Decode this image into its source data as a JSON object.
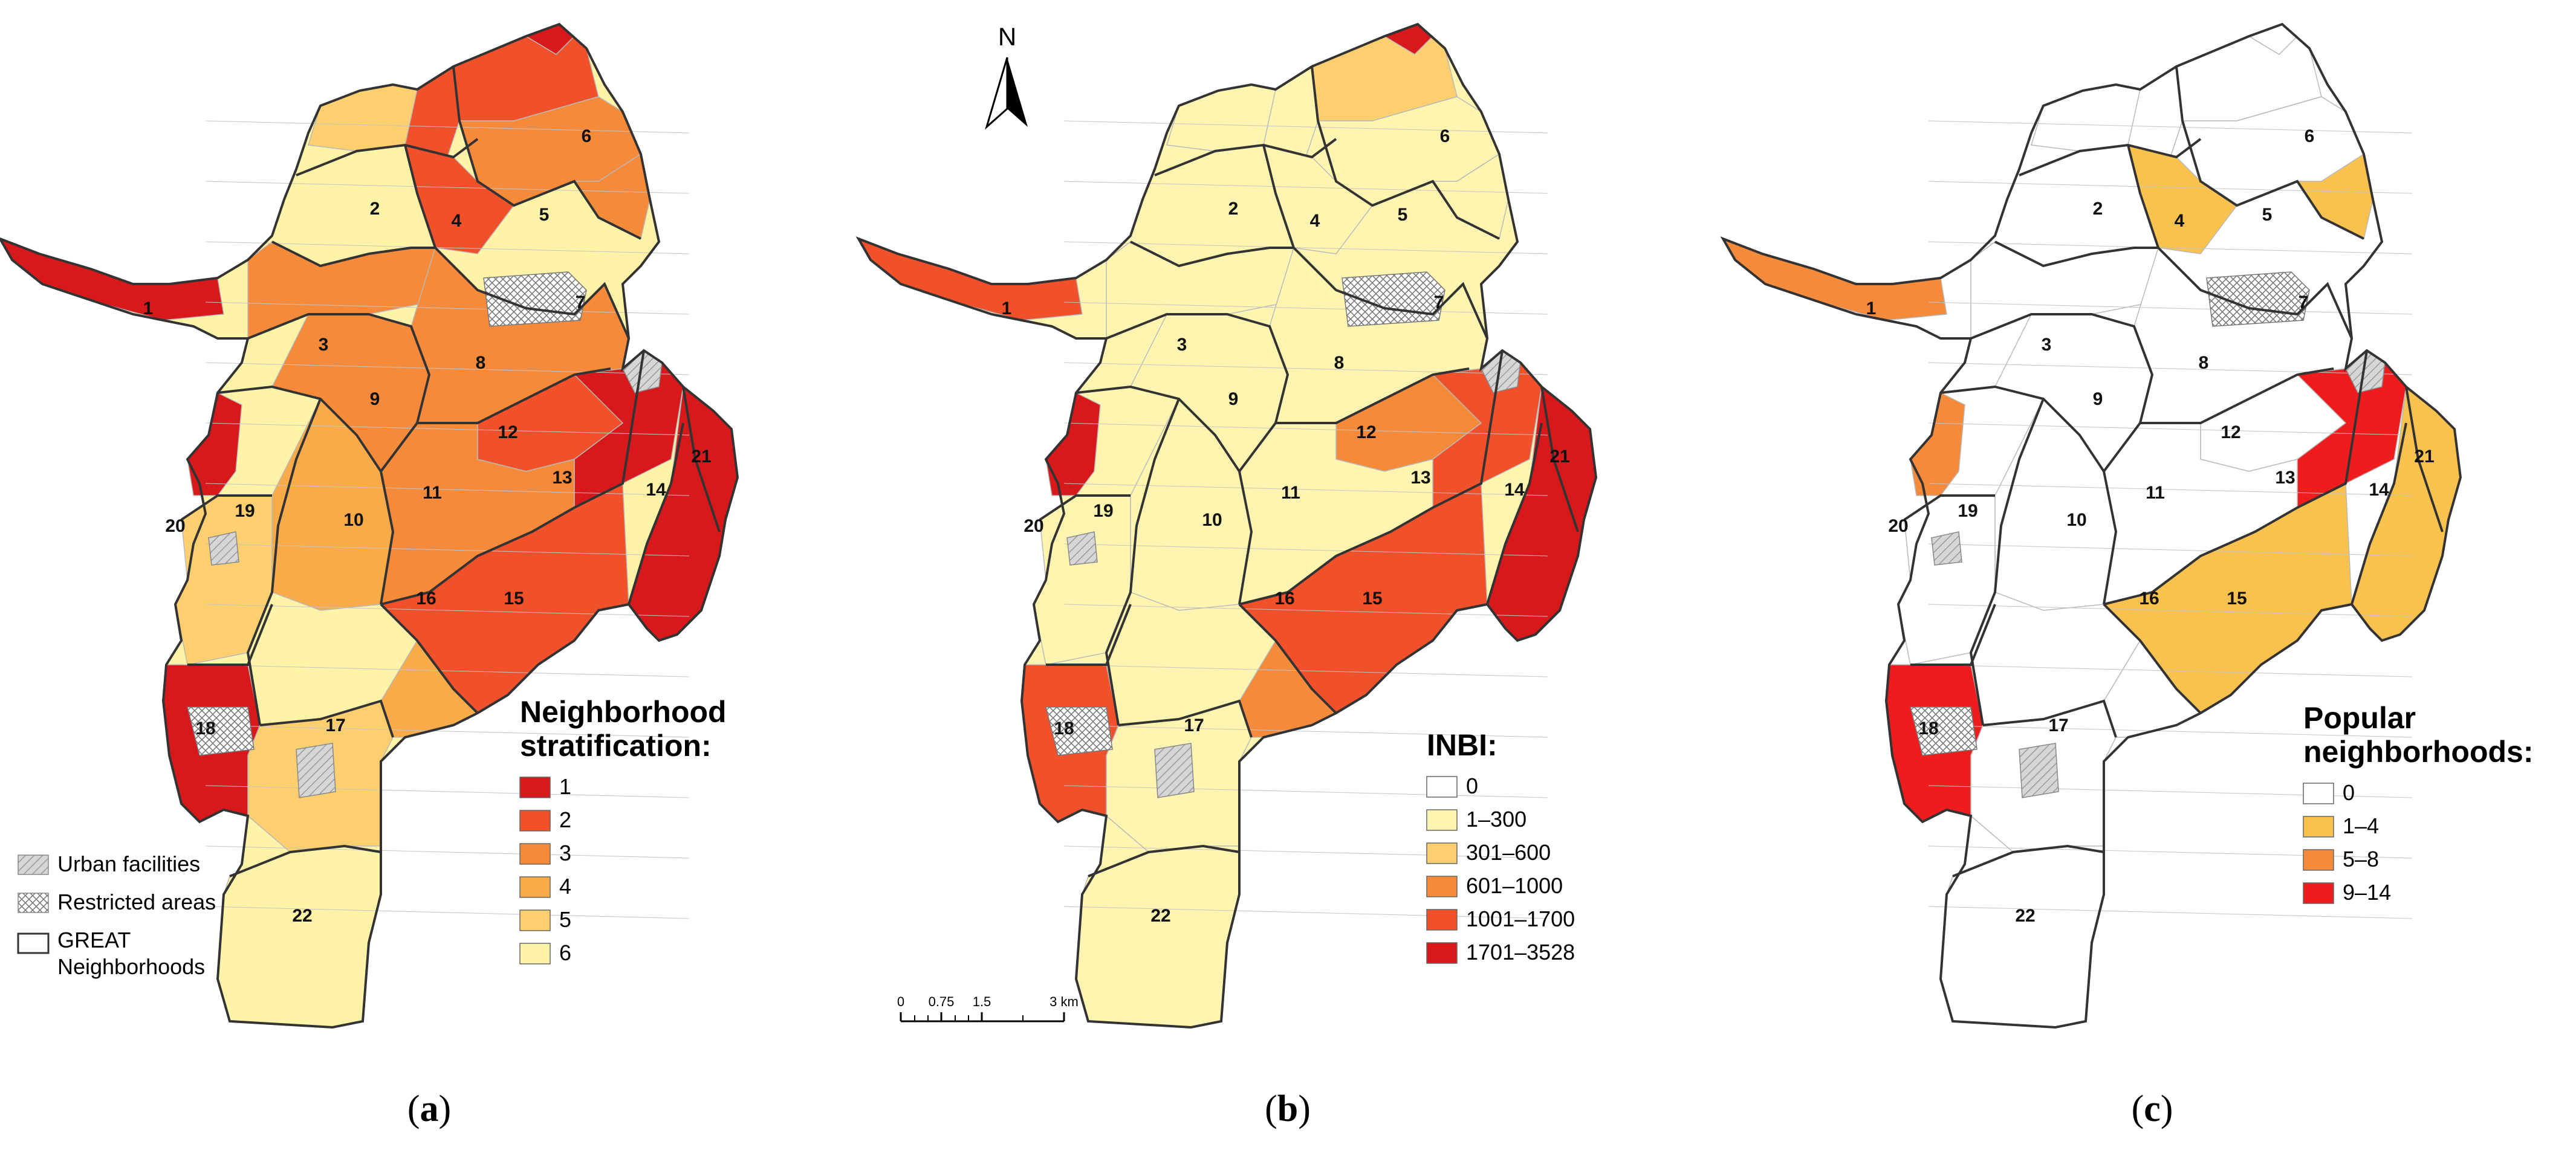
{
  "panels": [
    {
      "label_letter": "a",
      "legend_title": [
        "Neighborhood",
        "stratification:"
      ],
      "legend_items": [
        {
          "label": "1",
          "color": "#d7191c"
        },
        {
          "label": "2",
          "color": "#f0502a"
        },
        {
          "label": "3",
          "color": "#f58a3a"
        },
        {
          "label": "4",
          "color": "#f9ab4a"
        },
        {
          "label": "5",
          "color": "#fdcf6e"
        },
        {
          "label": "6",
          "color": "#fff3a8"
        }
      ]
    },
    {
      "label_letter": "b",
      "legend_title": [
        "INBI:"
      ],
      "legend_items": [
        {
          "label": "0",
          "color": "#ffffff"
        },
        {
          "label": "1–300",
          "color": "#fff5b0"
        },
        {
          "label": "301–600",
          "color": "#fdcf6e"
        },
        {
          "label": "601–1000",
          "color": "#f58a3a"
        },
        {
          "label": "1001–1700",
          "color": "#f0502a"
        },
        {
          "label": "1701–3528",
          "color": "#d7191c"
        }
      ]
    },
    {
      "label_letter": "c",
      "legend_title": [
        "Popular",
        "neighborhoods:"
      ],
      "legend_items": [
        {
          "label": "0",
          "color": "#ffffff"
        },
        {
          "label": "1–4",
          "color": "#f9c24e"
        },
        {
          "label": "5–8",
          "color": "#f58a3a"
        },
        {
          "label": "9–14",
          "color": "#ee1c1c"
        }
      ]
    }
  ],
  "common_legend": {
    "urban_facilities": "Urban facilities",
    "restricted_areas": "Restricted areas",
    "great_neighborhoods": [
      "GREAT",
      "Neighborhoods"
    ]
  },
  "north_arrow": "N",
  "scale_bar": {
    "ticks": [
      "0",
      "0.75",
      "1.5",
      "3 km"
    ]
  },
  "neighborhood_labels": [
    "1",
    "2",
    "3",
    "4",
    "5",
    "6",
    "7",
    "8",
    "9",
    "10",
    "11",
    "12",
    "13",
    "14",
    "15",
    "16",
    "17",
    "18",
    "19",
    "20",
    "21",
    "22"
  ],
  "colors": {
    "outline": "#333333",
    "facility_fill": "#cfcfcf",
    "restricted_fill": "#ffffff"
  }
}
